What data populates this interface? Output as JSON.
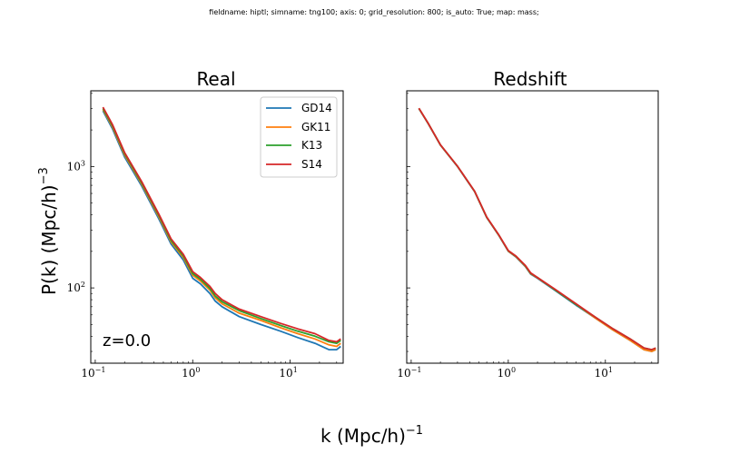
{
  "figure": {
    "suptitle": "fieldname: hiptl; simname: tng100; axis: 0; grid_resolution: 800; is_auto: True; map: mass;",
    "xlabel_base": "k (Mpc/h)",
    "xlabel_exp": "−1",
    "ylabel_base": "P(k) (Mpc/h)",
    "ylabel_exp": "−3",
    "annotation": "z=0.0"
  },
  "colors": {
    "GD14": "#1f77b4",
    "GK11": "#ff7f0e",
    "K13": "#2ca02c",
    "S14": "#d62728"
  },
  "chart_data": [
    {
      "type": "line",
      "title": "Real",
      "xscale": "log",
      "yscale": "log",
      "xlim": [
        0.09,
        35
      ],
      "ylim": [
        24,
        4200
      ],
      "xticks": [
        {
          "value": 0.1,
          "base": "10",
          "exp": "−1"
        },
        {
          "value": 1,
          "base": "10",
          "exp": "0"
        },
        {
          "value": 10,
          "base": "10",
          "exp": "1"
        }
      ],
      "yticks": [
        {
          "value": 100,
          "base": "10",
          "exp": "2"
        },
        {
          "value": 1000,
          "base": "10",
          "exp": "3"
        }
      ],
      "legend": "top-right",
      "x": [
        0.12,
        0.15,
        0.2,
        0.3,
        0.45,
        0.6,
        0.8,
        1.0,
        1.2,
        1.5,
        1.7,
        2.0,
        3.0,
        5.0,
        8.0,
        12.0,
        18.0,
        25.0,
        30.0,
        33.0
      ],
      "series": [
        {
          "name": "GD14",
          "values": [
            2870,
            2050,
            1200,
            690,
            370,
            230,
            170,
            120,
            108,
            90,
            78,
            70,
            58,
            50,
            44,
            39,
            35,
            31,
            31,
            33
          ]
        },
        {
          "name": "GK11",
          "values": [
            2950,
            2120,
            1245,
            715,
            385,
            240,
            178,
            127,
            114,
            96,
            83,
            74,
            62,
            54,
            47,
            42,
            38,
            34,
            33,
            35
          ]
        },
        {
          "name": "K13",
          "values": [
            3000,
            2170,
            1275,
            730,
            395,
            246,
            183,
            131,
            118,
            99,
            86,
            77,
            65,
            56,
            49,
            44,
            40,
            36,
            35,
            37
          ]
        },
        {
          "name": "S14",
          "values": [
            3080,
            2220,
            1305,
            750,
            405,
            254,
            189,
            136,
            122,
            103,
            90,
            80,
            67,
            58,
            51,
            46,
            42,
            37,
            36,
            38
          ]
        }
      ]
    },
    {
      "type": "line",
      "title": "Redshift",
      "xscale": "log",
      "yscale": "log",
      "xlim": [
        0.09,
        35
      ],
      "ylim": [
        24,
        4200
      ],
      "xticks": [
        {
          "value": 0.1,
          "base": "10",
          "exp": "−1"
        },
        {
          "value": 1,
          "base": "10",
          "exp": "0"
        },
        {
          "value": 10,
          "base": "10",
          "exp": "1"
        }
      ],
      "yticks_labeled": false,
      "x": [
        0.12,
        0.15,
        0.2,
        0.3,
        0.45,
        0.6,
        0.8,
        1.0,
        1.2,
        1.5,
        1.7,
        2.0,
        3.0,
        5.0,
        8.0,
        12.0,
        18.0,
        25.0,
        30.0,
        33.0
      ],
      "series": [
        {
          "name": "GD14",
          "values": [
            3000,
            2250,
            1500,
            1000,
            620,
            380,
            270,
            200,
            180,
            150,
            130,
            120,
            96,
            72,
            56,
            45,
            37,
            31,
            30,
            31
          ]
        },
        {
          "name": "GK11",
          "values": [
            3005,
            2255,
            1503,
            1002,
            622,
            381,
            271,
            201,
            181,
            151,
            131,
            121,
            97,
            73,
            56,
            45,
            37,
            31,
            30,
            31
          ]
        },
        {
          "name": "K13",
          "values": [
            3010,
            2260,
            1506,
            1004,
            624,
            382,
            272,
            202,
            182,
            152,
            132,
            122,
            97,
            73,
            57,
            46,
            38,
            32,
            31,
            32
          ]
        },
        {
          "name": "S14",
          "values": [
            3020,
            2265,
            1510,
            1007,
            626,
            384,
            273,
            203,
            183,
            153,
            133,
            122,
            98,
            74,
            57,
            46,
            38,
            32,
            31,
            32
          ]
        }
      ]
    }
  ]
}
